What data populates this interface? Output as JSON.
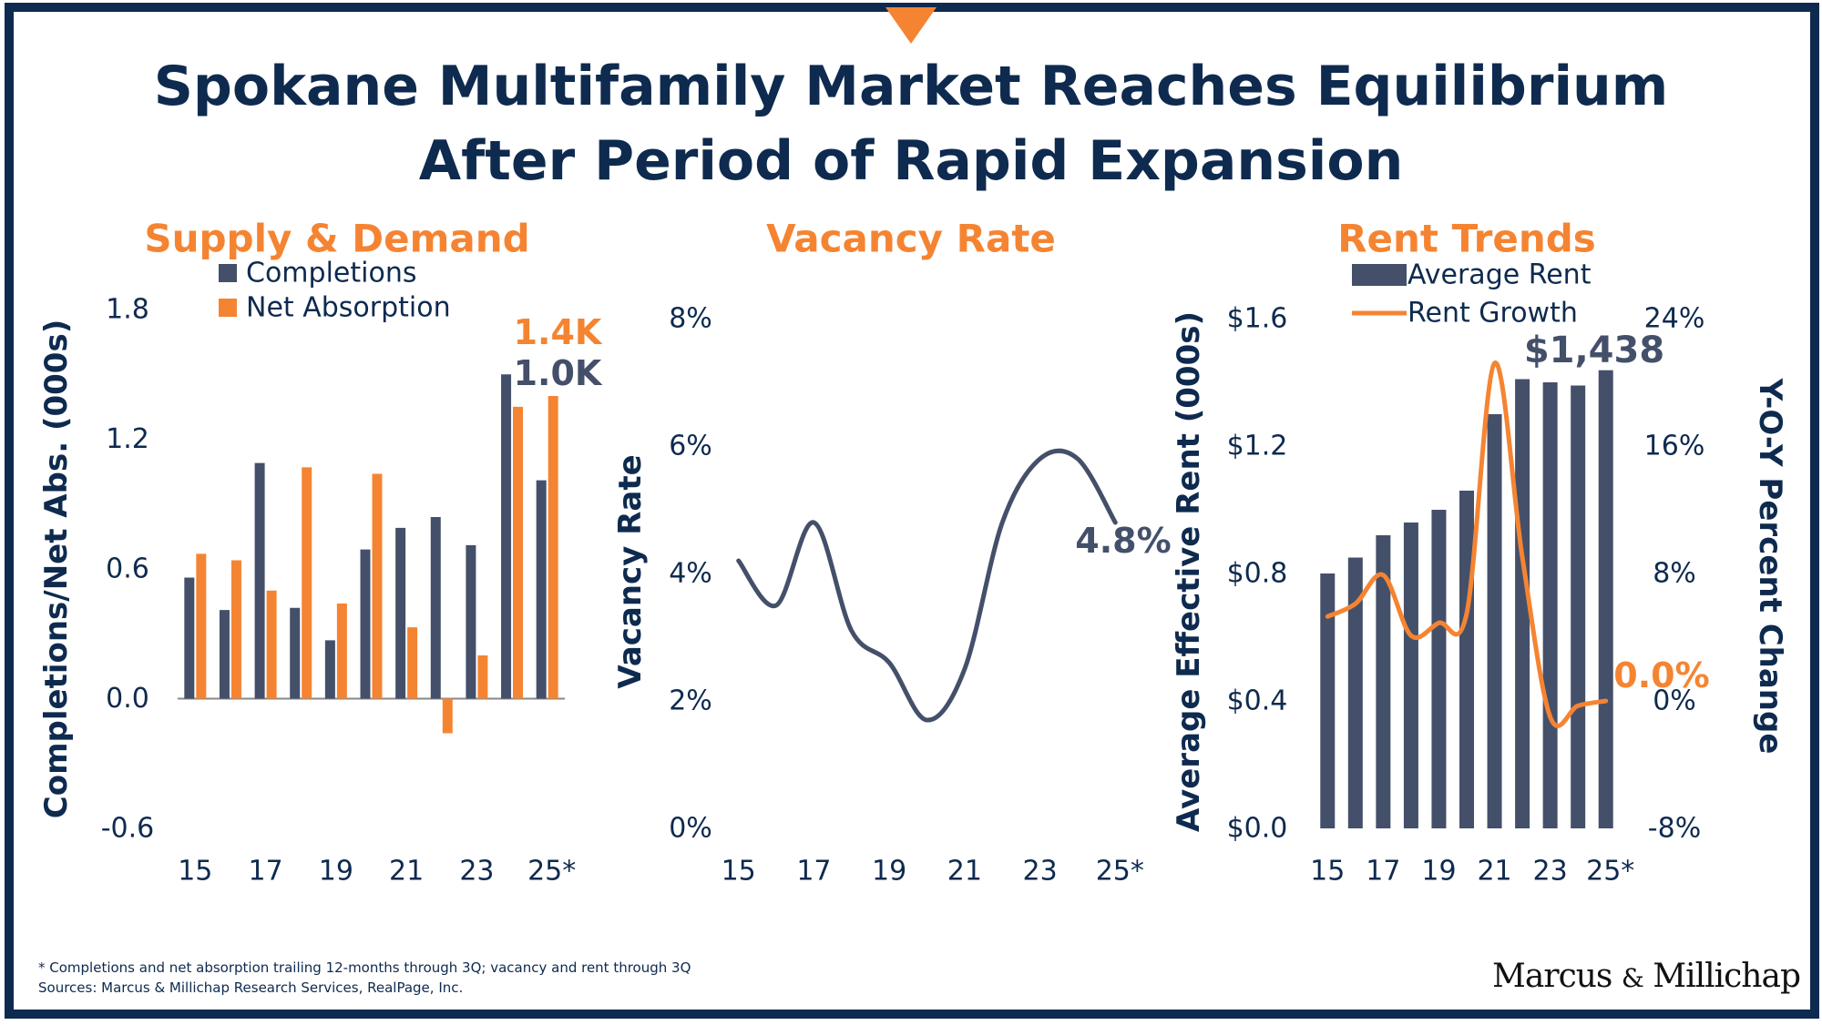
{
  "title_line1": "Spokane Multifamily Market Reaches Equilibrium",
  "title_line2": "After Period of Rapid Expansion",
  "footnote_line1": "* Completions and net absorption trailing 12-months through 3Q; vacancy and rent through 3Q",
  "footnote_line2": "Sources: Marcus & Millichap Research Services, RealPage, Inc.",
  "logo_text": "Marcus & Millichap",
  "colors": {
    "navy": "#0e2a4f",
    "slate": "#44506a",
    "orange": "#f58432",
    "frame": "#0e2a4f"
  },
  "chart_data": [
    {
      "type": "bar",
      "title": "Supply & Demand",
      "ylabel": "Completions/Net Abs. (000s)",
      "xlabel": "",
      "ylim": [
        -0.6,
        1.8
      ],
      "yticks": [
        "1.8",
        "1.2",
        "0.6",
        "0.0",
        "-0.6"
      ],
      "ytick_values": [
        1.8,
        1.2,
        0.6,
        0.0,
        -0.6
      ],
      "categories": [
        "15",
        "16",
        "17",
        "18",
        "19",
        "20",
        "21",
        "22",
        "23",
        "24",
        "25*"
      ],
      "xtick_labels": [
        "15",
        "17",
        "19",
        "21",
        "23",
        "25*"
      ],
      "xtick_categories": [
        "15",
        "17",
        "19",
        "21",
        "23",
        "25*"
      ],
      "series": [
        {
          "name": "Completions",
          "color": "#44506a",
          "values": [
            0.56,
            0.41,
            1.09,
            0.42,
            0.27,
            0.69,
            0.79,
            0.84,
            0.71,
            1.5,
            1.01
          ]
        },
        {
          "name": "Net Absorption",
          "color": "#f58432",
          "values": [
            0.67,
            0.64,
            0.5,
            1.07,
            0.44,
            1.04,
            0.33,
            -0.16,
            0.2,
            1.35,
            1.4
          ]
        }
      ],
      "annotations": [
        {
          "text": "1.4K",
          "series": "Net Absorption",
          "color": "#f58432"
        },
        {
          "text": "1.0K",
          "series": "Completions",
          "color": "#44506a"
        }
      ],
      "legend": "top-left"
    },
    {
      "type": "line",
      "title": "Vacancy Rate",
      "ylabel": "Vacancy Rate",
      "xlabel": "",
      "ylim": [
        0,
        8
      ],
      "yticks": [
        "8%",
        "6%",
        "4%",
        "2%",
        "0%"
      ],
      "ytick_values": [
        8,
        6,
        4,
        2,
        0
      ],
      "x": [
        "15",
        "16",
        "17",
        "18",
        "19",
        "20",
        "21",
        "22",
        "23",
        "24",
        "25*"
      ],
      "xtick_labels": [
        "15",
        "17",
        "19",
        "21",
        "23",
        "25*"
      ],
      "xtick_categories": [
        "15",
        "17",
        "19",
        "21",
        "23",
        "25*"
      ],
      "series": [
        {
          "color": "#44506a",
          "values": [
            4.2,
            3.5,
            4.8,
            3.1,
            2.6,
            1.7,
            2.5,
            4.8,
            5.8,
            5.8,
            4.8
          ]
        }
      ],
      "annotations": [
        {
          "text": "4.8%",
          "color": "#44506a"
        }
      ]
    },
    {
      "type": "bar",
      "title": "Rent Trends",
      "ylabel": "Average Effective Rent (000s)",
      "y2label": "Y-O-Y Percent Change",
      "ylim": [
        0,
        1.6
      ],
      "y2lim": [
        -8,
        24
      ],
      "yticks": [
        "$1.6",
        "$1.2",
        "$0.8",
        "$0.4",
        "$0.0"
      ],
      "ytick_values": [
        1.6,
        1.2,
        0.8,
        0.4,
        0.0
      ],
      "y2ticks": [
        "24%",
        "16%",
        "8%",
        "0%",
        "-8%"
      ],
      "y2tick_values": [
        24,
        16,
        8,
        0,
        -8
      ],
      "categories": [
        "15",
        "16",
        "17",
        "18",
        "19",
        "20",
        "21",
        "22",
        "23",
        "24",
        "25*"
      ],
      "xtick_labels": [
        "15",
        "17",
        "19",
        "21",
        "23",
        "25*"
      ],
      "xtick_categories": [
        "15",
        "17",
        "19",
        "21",
        "23",
        "25*"
      ],
      "series": [
        {
          "name": "Average Rent",
          "type": "bar",
          "axis": "left",
          "color": "#44506a",
          "values": [
            0.8,
            0.85,
            0.92,
            0.96,
            1.0,
            1.06,
            1.3,
            1.41,
            1.4,
            1.39,
            1.438
          ]
        },
        {
          "name": "Rent Growth",
          "type": "line",
          "axis": "right",
          "color": "#f58432",
          "values": [
            5.3,
            6.1,
            7.9,
            4.1,
            4.9,
            5.5,
            21.2,
            9.0,
            -1.0,
            -0.3,
            0.0
          ]
        }
      ],
      "annotations": [
        {
          "text": "$1,438",
          "series": "Average Rent",
          "color": "#44506a"
        },
        {
          "text": "0.0%",
          "series": "Rent Growth",
          "color": "#f58432"
        }
      ],
      "legend": "top-left"
    }
  ]
}
